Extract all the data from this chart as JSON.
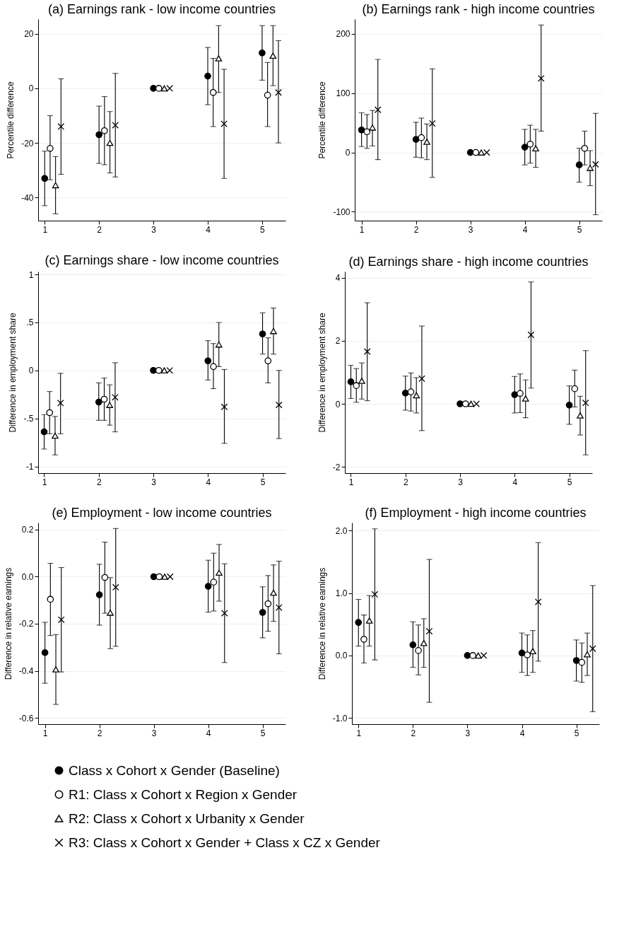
{
  "chart_data": [
    {
      "type": "scatter",
      "title": "(a) Earnings rank - low income countries",
      "ylabel": "Percentile difference",
      "xlim": [
        0.88,
        5.43
      ],
      "xticks": [
        1,
        2,
        3,
        4,
        5
      ],
      "ylim": [
        -48.5,
        25.4
      ],
      "yticks": [
        -40,
        -20,
        0,
        20
      ],
      "grid": "y",
      "legend": "bottom",
      "series": [
        {
          "name": "Class x Cohort x Gender (Baseline)",
          "color": "#000000",
          "marker": "circle",
          "x": [
            1,
            2,
            3,
            4,
            5
          ],
          "values": [
            -33,
            -17,
            0,
            4.5,
            13
          ],
          "errors": [
            [
              -43,
              -23
            ],
            [
              -27.5,
              -6.5
            ],
            null,
            [
              -6,
              15
            ],
            [
              3,
              23
            ]
          ]
        },
        {
          "name": "R1: Class x Cohort x Region x Gender",
          "color": "#000000",
          "marker": "circle",
          "x": [
            1.1,
            2.1,
            3.1,
            4.1,
            5.1
          ],
          "values": [
            -22,
            -15.5,
            0,
            -1.5,
            -2.5
          ],
          "errors": [
            [
              -33.5,
              -10
            ],
            [
              -28,
              -3
            ],
            null,
            [
              -14,
              11
            ],
            [
              -14,
              9.5
            ]
          ]
        },
        {
          "name": "R2: Class x Cohort x Urbanity x Gender",
          "color": "#000000",
          "marker": "triangle",
          "x": [
            1.2,
            2.2,
            3.2,
            4.2,
            5.2
          ],
          "values": [
            -35.5,
            -20,
            0,
            11,
            12
          ],
          "errors": [
            [
              -46,
              -25
            ],
            [
              -31,
              -8.5
            ],
            null,
            [
              -1.5,
              23
            ],
            [
              1,
              23
            ]
          ]
        },
        {
          "name": "R3: Class x Cohort x Gender + Class x CZ x Gender",
          "color": "#000000",
          "marker": "cross",
          "x": [
            1.3,
            2.3,
            3.3,
            4.3,
            5.3
          ],
          "values": [
            -14,
            -13.5,
            0,
            -13,
            -1.5
          ],
          "errors": [
            [
              -31.5,
              3.5
            ],
            [
              -32.5,
              5.5
            ],
            null,
            [
              -33,
              7
            ],
            [
              -20,
              17.5
            ]
          ]
        }
      ]
    },
    {
      "type": "scatter",
      "title": "(b) Earnings rank - high income countries",
      "ylabel": "Percentile difference",
      "xlim": [
        0.875,
        5.42
      ],
      "xticks": [
        1,
        2,
        3,
        4,
        5
      ],
      "ylim": [
        -115,
        225
      ],
      "yticks": [
        -100,
        0,
        100,
        200
      ],
      "grid": "y",
      "legend": "bottom",
      "series": [
        {
          "name": "Class x Cohort x Gender (Baseline)",
          "color": "#000000",
          "marker": "circle",
          "x": [
            1,
            2,
            3,
            4,
            5
          ],
          "values": [
            38,
            22,
            0,
            9,
            -21
          ],
          "errors": [
            [
              10,
              67
            ],
            [
              -8,
              51
            ],
            null,
            [
              -21,
              39
            ],
            [
              -50,
              7
            ]
          ]
        },
        {
          "name": "R1: Class x Cohort x Region x Gender",
          "color": "#000000",
          "marker": "circle",
          "x": [
            1.1,
            2.1,
            3.1,
            4.1,
            5.1
          ],
          "values": [
            35,
            25,
            0,
            14,
            7
          ],
          "errors": [
            [
              7,
              64
            ],
            [
              -9,
              58
            ],
            null,
            [
              -18,
              46
            ],
            [
              -21,
              36
            ]
          ]
        },
        {
          "name": "R2: Class x Cohort x Urbanity x Gender",
          "color": "#000000",
          "marker": "triangle",
          "x": [
            1.2,
            2.2,
            3.2,
            4.2,
            5.2
          ],
          "values": [
            42,
            18,
            0,
            7,
            -26
          ],
          "errors": [
            [
              11,
              71
            ],
            [
              -12,
              48
            ],
            null,
            [
              -25,
              39
            ],
            [
              -56,
              3
            ]
          ]
        },
        {
          "name": "R3: Class x Cohort x Gender + Class x CZ x Gender",
          "color": "#000000",
          "marker": "cross",
          "x": [
            1.3,
            2.3,
            3.3,
            4.3,
            5.3
          ],
          "values": [
            72,
            49,
            0,
            125,
            -20
          ],
          "errors": [
            [
              -12,
              157
            ],
            [
              -42,
              141
            ],
            null,
            [
              36,
              215
            ],
            [
              -105,
              66
            ]
          ]
        }
      ]
    },
    {
      "type": "scatter",
      "title": "(c) Earnings share - low income countries",
      "ylabel": "Difference in employment share",
      "xlim": [
        0.89,
        5.42
      ],
      "xticks": [
        1,
        2,
        3,
        4,
        5
      ],
      "ylim": [
        -1.07,
        1.03
      ],
      "yticks": [
        -1,
        {
          "value": -0.5,
          "label": "-.5"
        },
        0,
        {
          "value": 0.5,
          "label": ".5"
        },
        1
      ],
      "grid": "y",
      "legend": "bottom",
      "series": [
        {
          "name": "Class x Cohort x Gender (Baseline)",
          "color": "#000000",
          "marker": "circle",
          "x": [
            1,
            2,
            3,
            4,
            5
          ],
          "values": [
            -0.64,
            -0.33,
            0,
            0.1,
            0.38
          ],
          "errors": [
            [
              -0.82,
              -0.46
            ],
            [
              -0.52,
              -0.13
            ],
            null,
            [
              -0.1,
              0.31
            ],
            [
              0.17,
              0.6
            ]
          ]
        },
        {
          "name": "R1: Class x Cohort x Region x Gender",
          "color": "#000000",
          "marker": "circle",
          "x": [
            1.1,
            2.1,
            3.1,
            4.1,
            5.1
          ],
          "values": [
            -0.44,
            -0.3,
            0,
            0.04,
            0.1
          ],
          "errors": [
            [
              -0.66,
              -0.22
            ],
            [
              -0.52,
              -0.08
            ],
            null,
            [
              -0.19,
              0.28
            ],
            [
              -0.13,
              0.34
            ]
          ]
        },
        {
          "name": "R2: Class x Cohort x Urbanity x Gender",
          "color": "#000000",
          "marker": "triangle",
          "x": [
            1.2,
            2.2,
            3.2,
            4.2,
            5.2
          ],
          "values": [
            -0.68,
            -0.36,
            0,
            0.27,
            0.41
          ],
          "errors": [
            [
              -0.88,
              -0.48
            ],
            [
              -0.57,
              -0.15
            ],
            null,
            [
              0.04,
              0.5
            ],
            [
              0.17,
              0.65
            ]
          ]
        },
        {
          "name": "R3: Class x Cohort x Gender + Class x CZ x Gender",
          "color": "#000000",
          "marker": "cross",
          "x": [
            1.3,
            2.3,
            3.3,
            4.3,
            5.3
          ],
          "values": [
            -0.34,
            -0.28,
            0,
            -0.38,
            -0.36
          ],
          "errors": [
            [
              -0.66,
              -0.03
            ],
            [
              -0.64,
              0.08
            ],
            null,
            [
              -0.76,
              0.01
            ],
            [
              -0.71,
              0.0
            ]
          ]
        }
      ]
    },
    {
      "type": "scatter",
      "title": "(d) Earnings share - high income countries",
      "ylabel": "Difference in employment share",
      "xlim": [
        0.89,
        5.42
      ],
      "xticks": [
        1,
        2,
        3,
        4,
        5
      ],
      "ylim": [
        -2.2,
        4.2
      ],
      "yticks": [
        -2,
        0,
        2,
        4
      ],
      "grid": "y",
      "legend": "bottom",
      "series": [
        {
          "name": "Class x Cohort x Gender (Baseline)",
          "color": "#000000",
          "marker": "circle",
          "x": [
            1,
            2,
            3,
            4,
            5
          ],
          "values": [
            0.7,
            0.34,
            0,
            0.29,
            -0.04
          ],
          "errors": [
            [
              0.17,
              1.22
            ],
            [
              -0.2,
              0.88
            ],
            null,
            [
              -0.29,
              0.87
            ],
            [
              -0.65,
              0.57
            ]
          ]
        },
        {
          "name": "R1: Class x Cohort x Region x Gender",
          "color": "#000000",
          "marker": "circle",
          "x": [
            1.1,
            2.1,
            3.1,
            4.1,
            5.1
          ],
          "values": [
            0.58,
            0.38,
            0,
            0.33,
            0.48
          ],
          "errors": [
            [
              0.05,
              1.12
            ],
            [
              -0.23,
              0.98
            ],
            null,
            [
              -0.28,
              0.95
            ],
            [
              -0.1,
              1.07
            ]
          ]
        },
        {
          "name": "R2: Class x Cohort x Urbanity x Gender",
          "color": "#000000",
          "marker": "triangle",
          "x": [
            1.2,
            2.2,
            3.2,
            4.2,
            5.2
          ],
          "values": [
            0.73,
            0.27,
            0,
            0.17,
            -0.37
          ],
          "errors": [
            [
              0.15,
              1.3
            ],
            [
              -0.29,
              0.83
            ],
            null,
            [
              -0.44,
              0.76
            ],
            [
              -0.99,
              0.24
            ]
          ]
        },
        {
          "name": "R3: Class x Cohort x Gender + Class x CZ x Gender",
          "color": "#000000",
          "marker": "cross",
          "x": [
            1.3,
            2.3,
            3.3,
            4.3,
            5.3
          ],
          "values": [
            1.66,
            0.8,
            0,
            2.19,
            0.03
          ],
          "errors": [
            [
              0.1,
              3.21
            ],
            [
              -0.85,
              2.47
            ],
            null,
            [
              0.5,
              3.87
            ],
            [
              -1.62,
              1.69
            ]
          ]
        }
      ]
    },
    {
      "type": "scatter",
      "title": "(e) Employment - low income countries",
      "ylabel": "Difference in relative earnings",
      "xlim": [
        0.875,
        5.42
      ],
      "xticks": [
        1,
        2,
        3,
        4,
        5
      ],
      "ylim": [
        -0.627,
        0.23
      ],
      "yticks": [
        {
          "value": -0.6,
          "label": "-0.6"
        },
        {
          "value": -0.4,
          "label": "-0.4"
        },
        {
          "value": -0.2,
          "label": "-0.2"
        },
        {
          "value": 0,
          "label": "0.0"
        },
        {
          "value": 0.2,
          "label": "0.2"
        }
      ],
      "grid": "y",
      "legend": "bottom",
      "series": [
        {
          "name": "Class x Cohort x Gender (Baseline)",
          "color": "#000000",
          "marker": "circle",
          "x": [
            1,
            2,
            3,
            4,
            5
          ],
          "values": [
            -0.323,
            -0.077,
            0,
            -0.041,
            -0.152
          ],
          "errors": [
            [
              -0.453,
              -0.194
            ],
            [
              -0.206,
              0.053
            ],
            null,
            [
              -0.151,
              0.07
            ],
            [
              -0.26,
              -0.043
            ]
          ]
        },
        {
          "name": "R1: Class x Cohort x Region x Gender",
          "color": "#000000",
          "marker": "circle",
          "x": [
            1.1,
            2.1,
            3.1,
            4.1,
            5.1
          ],
          "values": [
            -0.096,
            -0.003,
            0,
            -0.023,
            -0.115
          ],
          "errors": [
            [
              -0.25,
              0.057
            ],
            [
              -0.155,
              0.147
            ],
            null,
            [
              -0.146,
              0.1
            ],
            [
              -0.232,
              0.005
            ]
          ]
        },
        {
          "name": "R2: Class x Cohort x Urbanity x Gender",
          "color": "#000000",
          "marker": "triangle",
          "x": [
            1.2,
            2.2,
            3.2,
            4.2,
            5.2
          ],
          "values": [
            -0.394,
            -0.153,
            0,
            0.017,
            -0.068
          ],
          "errors": [
            [
              -0.543,
              -0.246
            ],
            [
              -0.306,
              -0.004
            ],
            null,
            [
              -0.104,
              0.137
            ],
            [
              -0.19,
              0.05
            ]
          ]
        },
        {
          "name": "R3: Class x Cohort x Gender + Class x CZ x Gender",
          "color": "#000000",
          "marker": "cross",
          "x": [
            1.3,
            2.3,
            3.3,
            4.3,
            5.3
          ],
          "values": [
            -0.183,
            -0.045,
            0,
            -0.155,
            -0.131
          ],
          "errors": [
            [
              -0.405,
              0.039
            ],
            [
              -0.296,
              0.205
            ],
            null,
            [
              -0.365,
              0.055
            ],
            [
              -0.328,
              0.066
            ]
          ]
        }
      ]
    },
    {
      "type": "scatter",
      "title": "(f) Employment - high income countries",
      "ylabel": "Difference in relative earnings",
      "xlim": [
        0.88,
        5.42
      ],
      "xticks": [
        1,
        2,
        3,
        4,
        5
      ],
      "ylim": [
        -1.1,
        2.13
      ],
      "yticks": [
        {
          "value": -1,
          "label": "-1.0"
        },
        {
          "value": 0,
          "label": "0.0"
        },
        {
          "value": 1,
          "label": "1.0"
        },
        {
          "value": 2,
          "label": "2.0"
        }
      ],
      "grid": "y",
      "legend": "bottom",
      "series": [
        {
          "name": "Class x Cohort x Gender (Baseline)",
          "color": "#000000",
          "marker": "circle",
          "x": [
            1,
            2,
            3,
            4,
            5
          ],
          "values": [
            0.53,
            0.17,
            0,
            0.04,
            -0.08
          ],
          "errors": [
            [
              0.15,
              0.9
            ],
            [
              -0.19,
              0.54
            ],
            null,
            [
              -0.27,
              0.36
            ],
            [
              -0.41,
              0.25
            ]
          ]
        },
        {
          "name": "R1: Class x Cohort x Region x Gender",
          "color": "#000000",
          "marker": "circle",
          "x": [
            1.1,
            2.1,
            3.1,
            4.1,
            5.1
          ],
          "values": [
            0.26,
            0.08,
            0,
            0.01,
            -0.11
          ],
          "errors": [
            [
              -0.12,
              0.65
            ],
            [
              -0.31,
              0.49
            ],
            null,
            [
              -0.32,
              0.33
            ],
            [
              -0.43,
              0.2
            ]
          ]
        },
        {
          "name": "R2: Class x Cohort x Urbanity x Gender",
          "color": "#000000",
          "marker": "triangle",
          "x": [
            1.2,
            2.2,
            3.2,
            4.2,
            5.2
          ],
          "values": [
            0.56,
            0.2,
            0,
            0.07,
            0.02
          ],
          "errors": [
            [
              0.15,
              0.96
            ],
            [
              -0.19,
              0.59
            ],
            null,
            [
              -0.27,
              0.4
            ],
            [
              -0.32,
              0.36
            ]
          ]
        },
        {
          "name": "R3: Class x Cohort x Gender + Class x CZ x Gender",
          "color": "#000000",
          "marker": "cross",
          "x": [
            1.3,
            2.3,
            3.3,
            4.3,
            5.3
          ],
          "values": [
            0.98,
            0.39,
            0,
            0.86,
            0.11
          ],
          "errors": [
            [
              -0.07,
              2.03
            ],
            [
              -0.75,
              1.54
            ],
            null,
            [
              -0.09,
              1.81
            ],
            [
              -0.9,
              1.12
            ]
          ]
        }
      ]
    }
  ]
}
